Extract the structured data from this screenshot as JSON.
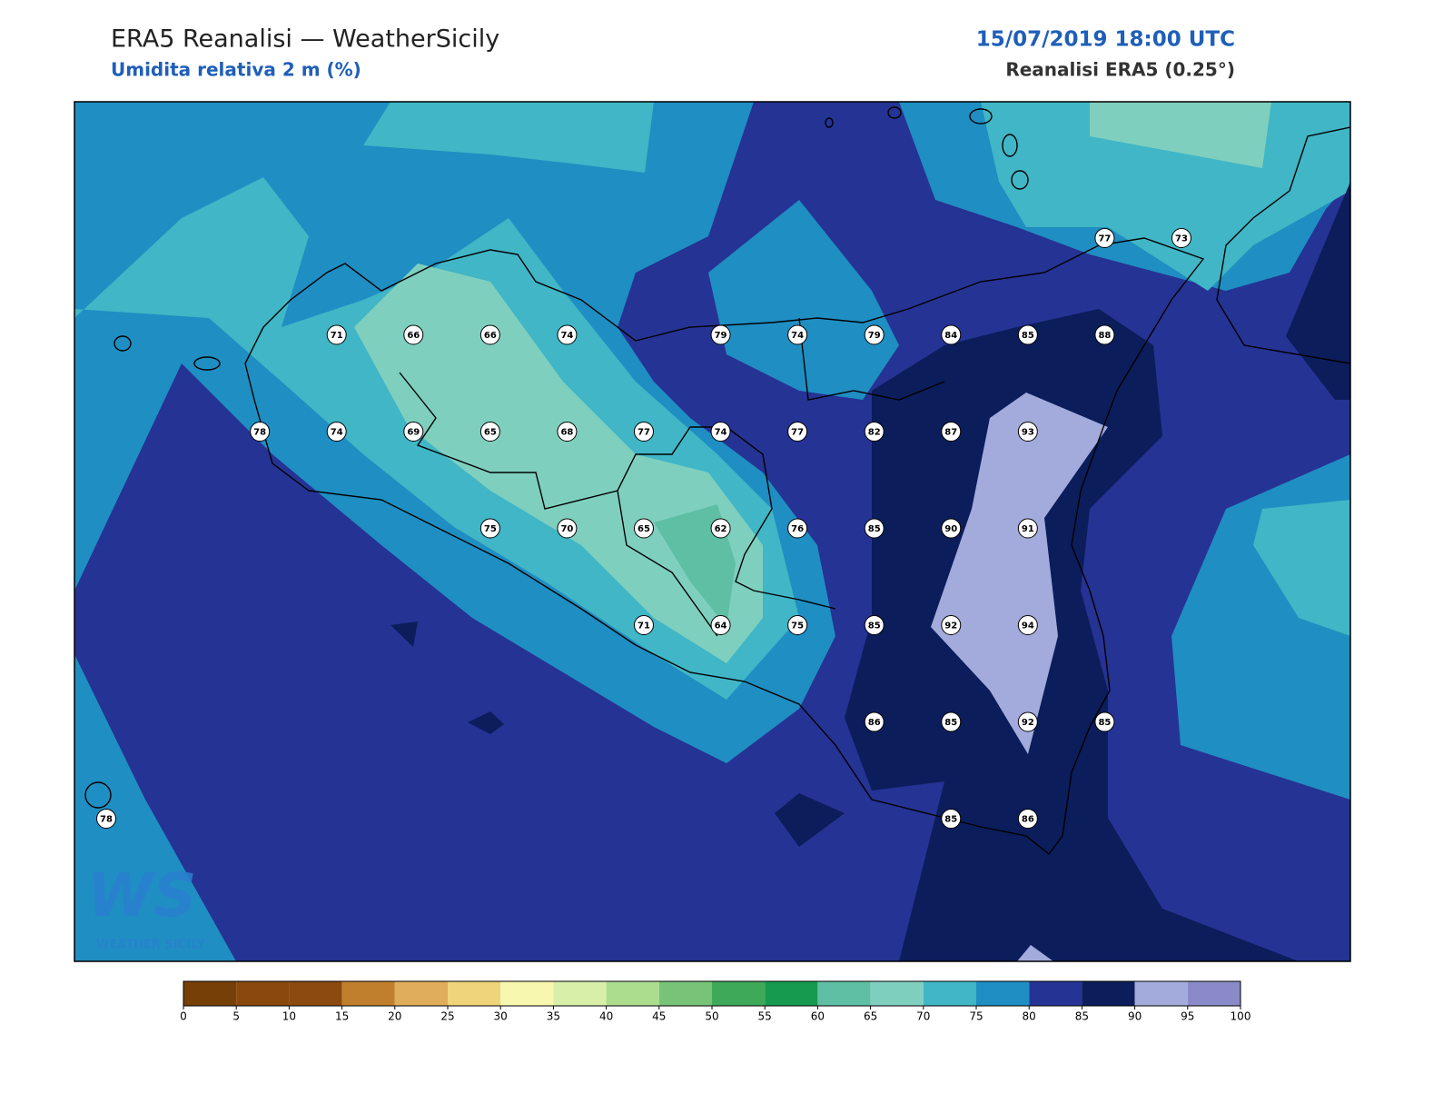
{
  "header": {
    "title": "ERA5 Reanalisi — WeatherSicily",
    "subtitle": "Umidita relativa 2 m (%)",
    "datetime": "15/07/2019 18:00 UTC",
    "source": "Reanalisi ERA5 (0.25°)"
  },
  "logo": {
    "mark": "WS",
    "name": "WEATHER SICILY"
  },
  "stations": [
    [
      null,
      null,
      null,
      null,
      null,
      null,
      null,
      null,
      null,
      null,
      null,
      null,
      null,
      77,
      73
    ],
    [
      null,
      null,
      null,
      71,
      66,
      66,
      74,
      null,
      79,
      74,
      79,
      84,
      85,
      88,
      null
    ],
    [
      null,
      null,
      78,
      74,
      69,
      65,
      68,
      77,
      74,
      77,
      82,
      87,
      93,
      null,
      null
    ],
    [
      null,
      null,
      null,
      null,
      null,
      75,
      70,
      65,
      62,
      76,
      85,
      90,
      91,
      null,
      null
    ],
    [
      null,
      null,
      null,
      null,
      null,
      null,
      null,
      71,
      64,
      75,
      85,
      92,
      94,
      null,
      null
    ],
    [
      null,
      null,
      null,
      null,
      null,
      null,
      null,
      null,
      null,
      null,
      86,
      85,
      92,
      85,
      null
    ],
    [
      78,
      null,
      null,
      null,
      null,
      null,
      null,
      null,
      null,
      null,
      null,
      85,
      86,
      null,
      null
    ]
  ],
  "colorbar": {
    "ticks": [
      0,
      5,
      10,
      15,
      20,
      25,
      30,
      35,
      40,
      45,
      50,
      55,
      60,
      65,
      70,
      75,
      80,
      85,
      90,
      95,
      100
    ],
    "colors": [
      "#773f08",
      "#8a480d",
      "#8c4a10",
      "#c07f2d",
      "#e0ad5b",
      "#f0d47a",
      "#f7f7b0",
      "#d8efaa",
      "#acdd8f",
      "#77c478",
      "#3fa95a",
      "#169a50",
      "#5fbfa4",
      "#7fcfbf",
      "#40b6c6",
      "#1f8ec2",
      "#253394",
      "#0b1d5b",
      "#a3abdc",
      "#8b8ac8"
    ]
  }
}
